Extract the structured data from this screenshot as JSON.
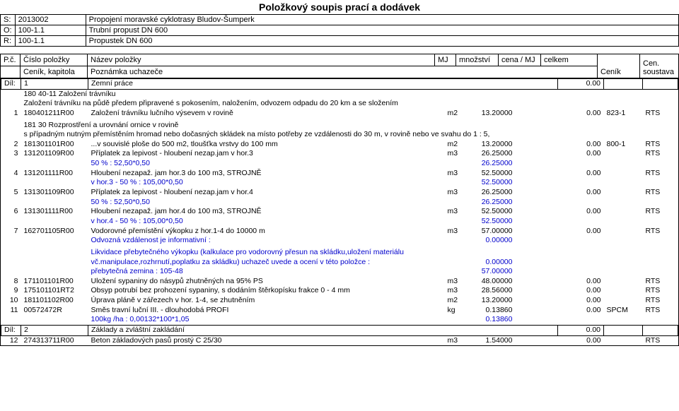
{
  "title": "Položkový soupis prací a dodávek",
  "header": {
    "rows": [
      {
        "lbl": "S:",
        "code": "2013002",
        "desc": "Propojení moravské cyklotrasy Bludov-Šumperk"
      },
      {
        "lbl": "O:",
        "code": "100-1.1",
        "desc": "Trubní propust DN 600"
      },
      {
        "lbl": "R:",
        "code": "100-1.1",
        "desc": "Propustek DN 600"
      }
    ]
  },
  "cols": {
    "pc": "P.č.",
    "cislo": "Číslo položky",
    "nazev": "Název položky",
    "mj": "MJ",
    "qty": "množství",
    "price": "cena / MJ",
    "celkem": "celkem",
    "cenik": "Ceník",
    "soustava": "Cen. soustava",
    "cenik_kap": "Ceník, kapitola",
    "pozn": "Poznámka uchazeče"
  },
  "sections": [
    {
      "dil_lbl": "Díl:",
      "dil_num": "1",
      "dil_name": "Zemní práce",
      "dil_total": "0.00",
      "rows": [
        {
          "t": "note",
          "text": "180 40-11 Založení trávníku"
        },
        {
          "t": "note",
          "text": "Založení trávníku na půdě předem připravené s pokosením, naložením, odvozem odpadu do 20 km a se složením"
        },
        {
          "t": "item",
          "pc": "1",
          "kod": "180401211R00",
          "nazev": "Založení trávníku lučního výsevem v rovině",
          "mj": "m2",
          "qty": "13.20000",
          "price": "",
          "celkem": "0.00",
          "cenik": "823-1",
          "soustava": "RTS"
        },
        {
          "t": "sp"
        },
        {
          "t": "note",
          "text": "181 30 Rozprostření a urovnání ornice v rovině"
        },
        {
          "t": "note",
          "text": "s případným nutným přemístěním hromad nebo dočasných skládek na místo potřeby ze vzdálenosti do 30 m, v rovině nebo ve svahu do 1 : 5,"
        },
        {
          "t": "item",
          "pc": "2",
          "kod": "181301101R00",
          "nazev": "...v souvislé ploše do 500 m2, tloušťka vrstvy do 100 mm",
          "mj": "m2",
          "qty": "13.20000",
          "price": "",
          "celkem": "0.00",
          "cenik": "800-1",
          "soustava": "RTS"
        },
        {
          "t": "item",
          "pc": "3",
          "kod": "131201109R00",
          "nazev": "Příplatek za lepivost - hloubení nezap.jam v hor.3",
          "mj": "m3",
          "qty": "26.25000",
          "price": "",
          "celkem": "0.00",
          "cenik": "",
          "soustava": "RTS"
        },
        {
          "t": "calc",
          "text": "50 % : 52,50*0,50",
          "val": "26.25000"
        },
        {
          "t": "item",
          "pc": "4",
          "kod": "131201111R00",
          "nazev": "Hloubení nezapaž. jam hor.3 do 100 m3, STROJNĚ",
          "mj": "m3",
          "qty": "52.50000",
          "price": "",
          "celkem": "0.00",
          "cenik": "",
          "soustava": "RTS"
        },
        {
          "t": "calc",
          "text": "v hor.3 - 50 % : 105,00*0,50",
          "val": "52.50000"
        },
        {
          "t": "item",
          "pc": "5",
          "kod": "131301109R00",
          "nazev": "Příplatek za lepivost - hloubení nezap.jam v hor.4",
          "mj": "m3",
          "qty": "26.25000",
          "price": "",
          "celkem": "0.00",
          "cenik": "",
          "soustava": "RTS"
        },
        {
          "t": "calc",
          "text": "50 % : 52,50*0,50",
          "val": "26.25000"
        },
        {
          "t": "item",
          "pc": "6",
          "kod": "131301111R00",
          "nazev": "Hloubení nezapaž. jam hor.4 do 100 m3, STROJNĚ",
          "mj": "m3",
          "qty": "52.50000",
          "price": "",
          "celkem": "0.00",
          "cenik": "",
          "soustava": "RTS"
        },
        {
          "t": "calc",
          "text": "v hor.4 - 50 % : 105,00*0,50",
          "val": "52.50000"
        },
        {
          "t": "item",
          "pc": "7",
          "kod": "162701105R00",
          "nazev": "Vodorovné přemístění výkopku z hor.1-4 do 10000 m",
          "mj": "m3",
          "qty": "57.00000",
          "price": "",
          "celkem": "0.00",
          "cenik": "",
          "soustava": "RTS"
        },
        {
          "t": "calc",
          "text": "Odvozná vzdálenost je informativní :",
          "val": "0.00000"
        },
        {
          "t": "sp"
        },
        {
          "t": "calc",
          "text": "Likvidace přebytečného výkopku (kalkulace pro vodorovný přesun na skládku,uložení materiálu",
          "val": ""
        },
        {
          "t": "calc",
          "text": "vč.manipulace,rozhrnutí,poplatku za skládku) uchazeč uvede a ocení v této položce :",
          "val": "0.00000"
        },
        {
          "t": "calc",
          "text": "přebytečná zemina : 105-48",
          "val": "57.00000"
        },
        {
          "t": "item",
          "pc": "8",
          "kod": "171101101R00",
          "nazev": "Uložení sypaniny do násypů zhutněných na 95% PS",
          "mj": "m3",
          "qty": "48.00000",
          "price": "",
          "celkem": "0.00",
          "cenik": "",
          "soustava": "RTS"
        },
        {
          "t": "item",
          "pc": "9",
          "kod": "175101101RT2",
          "nazev": "Obsyp potrubí bez prohození sypaniny, s dodáním štěrkopísku frakce 0 - 4 mm",
          "mj": "m3",
          "qty": "28.56000",
          "price": "",
          "celkem": "0.00",
          "cenik": "",
          "soustava": "RTS"
        },
        {
          "t": "item",
          "pc": "10",
          "kod": "181101102R00",
          "nazev": "Úprava pláně v zářezech v hor. 1-4, se zhutněním",
          "mj": "m2",
          "qty": "13.20000",
          "price": "",
          "celkem": "0.00",
          "cenik": "",
          "soustava": "RTS"
        },
        {
          "t": "item",
          "pc": "11",
          "kod": "00572472R",
          "nazev": "Směs travní luční III. - dlouhodobá PROFI",
          "mj": "kg",
          "qty": "0.13860",
          "price": "",
          "celkem": "0.00",
          "cenik": "SPCM",
          "soustava": "RTS"
        },
        {
          "t": "calc",
          "text": "100kg /ha : 0,00132*100*1,05",
          "val": "0.13860"
        }
      ]
    },
    {
      "dil_lbl": "Díl:",
      "dil_num": "2",
      "dil_name": "Základy a zvláštní zakládání",
      "dil_total": "0.00",
      "rows": [
        {
          "t": "item",
          "pc": "12",
          "kod": "274313711R00",
          "nazev": "Beton základových pasů prostý C 25/30",
          "mj": "m3",
          "qty": "1.54000",
          "price": "",
          "celkem": "0.00",
          "cenik": "",
          "soustava": "RTS"
        }
      ]
    }
  ]
}
